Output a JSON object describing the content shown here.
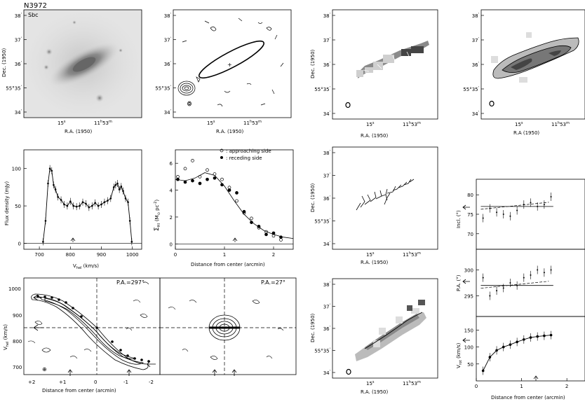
{
  "galaxy": "N3972",
  "morph_type": "Sbc",
  "axes": {
    "dec": "Dec. (1950)",
    "ra": "R.A. (1950)",
    "ra_alt": "R.A (1950)",
    "flux": "Flux density (mJy)",
    "vhel_kms": "V",
    "vhel_sub": "hel",
    "vhel_unit": " (km/s)",
    "distance": "Distance from center (arcmin)",
    "sigma_sym": "Σ",
    "sigma_sub": "HI",
    "sigma_unit": "(M",
    "sigma_unit_sub": "⊙",
    "sigma_unit_tail": " pc",
    "sigma_unit_exp": "-2",
    "sigma_unit_close": ")",
    "incl": "Incl. (°)",
    "pa": "P.A. (°)",
    "vrot_sym": "V",
    "vrot_sub": "rot",
    "vrot_unit": " (km/s)"
  },
  "dec_ticks": [
    {
      "deg": "",
      "min": "38",
      "sec": "'"
    },
    {
      "deg": "",
      "min": "37",
      "sec": "'"
    },
    {
      "deg": "",
      "min": "36",
      "sec": "'"
    },
    {
      "deg": "55°",
      "min": "35",
      "sec": "'"
    },
    {
      "deg": "",
      "min": "34",
      "sec": "'"
    }
  ],
  "ra_ticks": [
    {
      "main": "15",
      "sup": "s"
    },
    {
      "main": "11",
      "sup": "h",
      "main2": "53",
      "sup2": "m"
    }
  ],
  "legend": {
    "approaching": ": approaching side",
    "receding": ": receding side"
  },
  "pv_labels": {
    "major": "P.A.=297°",
    "minor": "P.A.=27°"
  },
  "chart_data": [
    {
      "type": "line",
      "panel": "global-profile",
      "xlabel": "V_hel (km/s)",
      "ylabel": "Flux density (mJy)",
      "xlim": [
        650,
        1030
      ],
      "ylim": [
        -8,
        125
      ],
      "xticks": [
        "700",
        "800",
        "900",
        "1000"
      ],
      "yticks": [
        "0",
        "50",
        "100"
      ],
      "x": [
        712,
        720,
        728,
        734,
        740,
        746,
        752,
        760,
        770,
        780,
        790,
        800,
        810,
        820,
        830,
        840,
        850,
        860,
        870,
        880,
        890,
        900,
        910,
        920,
        930,
        940,
        946,
        952,
        958,
        964,
        970,
        978,
        986,
        992,
        998
      ],
      "values": [
        2,
        30,
        80,
        100,
        97,
        78,
        72,
        62,
        58,
        52,
        50,
        56,
        50,
        49,
        50,
        55,
        53,
        48,
        50,
        54,
        50,
        52,
        55,
        57,
        60,
        75,
        78,
        80,
        72,
        76,
        70,
        60,
        55,
        30,
        2
      ]
    },
    {
      "type": "scatter",
      "panel": "hi-surface-density",
      "xlabel": "Distance from center (arcmin)",
      "ylabel": "Σ_HI (M⊙ pc^-2)",
      "xlim": [
        0,
        2.4
      ],
      "ylim": [
        -0.4,
        7
      ],
      "xticks": [
        "0",
        "1",
        "2"
      ],
      "yticks": [
        "0",
        "2",
        "4",
        "6"
      ],
      "series": [
        {
          "name": ": approaching side",
          "x": [
            0.05,
            0.2,
            0.35,
            0.5,
            0.65,
            0.8,
            0.95,
            1.1,
            1.25,
            1.4,
            1.55,
            1.7,
            1.85,
            2.0,
            2.15
          ],
          "values": [
            5.0,
            5.6,
            6.2,
            5.0,
            5.5,
            5.2,
            4.8,
            4.2,
            3.2,
            2.3,
            1.9,
            1.2,
            0.9,
            0.6,
            0.3
          ]
        },
        {
          "name": ": receding side",
          "x": [
            0.05,
            0.2,
            0.35,
            0.5,
            0.65,
            0.8,
            0.95,
            1.1,
            1.25,
            1.4,
            1.55,
            1.7,
            1.85,
            2.0,
            2.15
          ],
          "values": [
            4.8,
            4.6,
            4.7,
            4.5,
            4.8,
            4.9,
            4.4,
            4.0,
            3.8,
            2.4,
            1.6,
            1.3,
            0.7,
            0.8,
            0.5
          ]
        }
      ],
      "model_x": [
        0,
        0.2,
        0.4,
        0.6,
        0.8,
        1.0,
        1.2,
        1.4,
        1.6,
        1.8,
        2.0,
        2.2,
        2.4
      ],
      "model": [
        4.8,
        4.7,
        4.9,
        5.3,
        5.1,
        4.3,
        3.2,
        2.2,
        1.5,
        1.0,
        0.7,
        0.5,
        0.4
      ]
    },
    {
      "type": "scatter",
      "panel": "inclination",
      "xlim": [
        0,
        2.4
      ],
      "ylim": [
        66,
        84
      ],
      "yticks": [
        "70",
        "75",
        "80"
      ],
      "x": [
        0.15,
        0.3,
        0.45,
        0.6,
        0.75,
        0.9,
        1.05,
        1.2,
        1.35,
        1.5,
        1.65
      ],
      "values": [
        74,
        76.5,
        75.5,
        75,
        74.5,
        76,
        77.5,
        78,
        77,
        77.5,
        79.5
      ],
      "fit": 77
    },
    {
      "type": "scatter",
      "panel": "position-angle",
      "xlim": [
        0,
        2.4
      ],
      "ylim": [
        291,
        304
      ],
      "yticks": [
        "295",
        "300"
      ],
      "x": [
        0.15,
        0.3,
        0.45,
        0.6,
        0.75,
        0.9,
        1.05,
        1.2,
        1.35,
        1.5,
        1.65
      ],
      "values": [
        298.5,
        295,
        296,
        296.5,
        297.5,
        297,
        298.5,
        299,
        300,
        299.5,
        300
      ],
      "fit": 297
    },
    {
      "type": "line",
      "panel": "rotation-curve",
      "xlabel": "Distance from center (arcmin)",
      "ylabel": "V_rot (km/s)",
      "xlim": [
        0,
        2.4
      ],
      "ylim": [
        0,
        190
      ],
      "xticks": [
        "0",
        "1",
        "2"
      ],
      "yticks": [
        "50",
        "100",
        "150"
      ],
      "x": [
        0.15,
        0.3,
        0.45,
        0.6,
        0.75,
        0.9,
        1.05,
        1.2,
        1.35,
        1.5,
        1.65
      ],
      "values": [
        30,
        70,
        90,
        100,
        107,
        115,
        122,
        128,
        131,
        133,
        135
      ]
    }
  ]
}
